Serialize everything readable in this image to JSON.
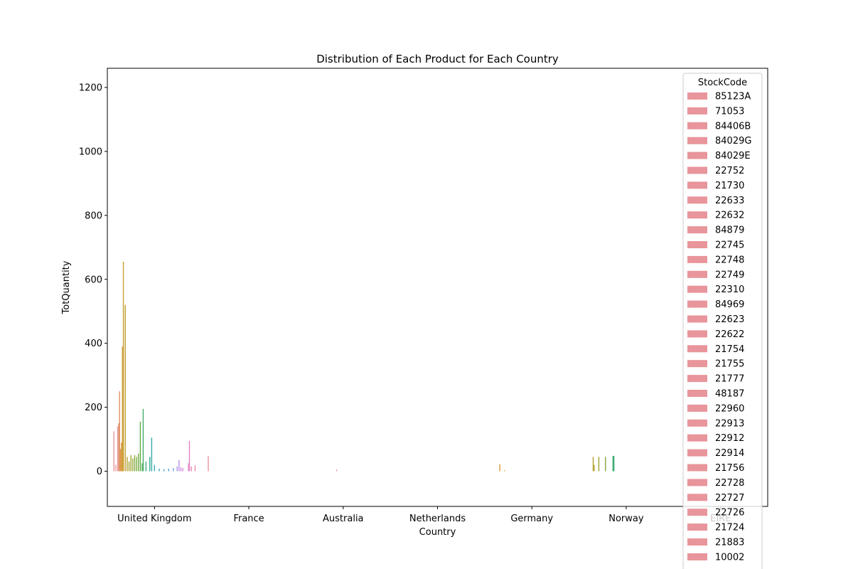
{
  "chart_data": {
    "type": "bar",
    "title": "Distribution of Each Product for Each Country",
    "xlabel": "Country",
    "ylabel": "TotQuantity",
    "categories": [
      "United Kingdom",
      "France",
      "Australia",
      "Netherlands",
      "Germany",
      "Norway",
      "EIRE"
    ],
    "ylim": [
      -110,
      1260
    ],
    "yticks": [
      0,
      200,
      400,
      600,
      800,
      1000,
      1200
    ],
    "grid": false,
    "legend": {
      "title": "StockCode",
      "placement": "upper-right, overflowing bottom",
      "entries": [
        "85123A",
        "71053",
        "84406B",
        "84029G",
        "84029E",
        "22752",
        "21730",
        "22633",
        "22632",
        "84879",
        "22745",
        "22748",
        "22749",
        "22310",
        "84969",
        "22623",
        "22622",
        "21754",
        "21755",
        "21777",
        "48187",
        "22960",
        "22913",
        "22912",
        "22914",
        "21756",
        "22728",
        "22727",
        "22726",
        "21724",
        "21883",
        "10002"
      ],
      "swatch_color": "#e8959b"
    },
    "series_note": "hundreds of StockCode hue bars per country; notable values estimated below",
    "bars": [
      {
        "country": "United Kingdom",
        "offset": -0.43,
        "value": 125,
        "color": "#e8959b"
      },
      {
        "country": "United Kingdom",
        "offset": -0.41,
        "value": 20,
        "color": "#e8959b"
      },
      {
        "country": "United Kingdom",
        "offset": -0.39,
        "value": 140,
        "color": "#e8959b"
      },
      {
        "country": "United Kingdom",
        "offset": -0.38,
        "value": 150,
        "color": "#e39a7a"
      },
      {
        "country": "United Kingdom",
        "offset": -0.37,
        "value": 250,
        "color": "#e08e62"
      },
      {
        "country": "United Kingdom",
        "offset": -0.36,
        "value": 70,
        "color": "#dd9a4a"
      },
      {
        "country": "United Kingdom",
        "offset": -0.35,
        "value": 90,
        "color": "#d79b3d"
      },
      {
        "country": "United Kingdom",
        "offset": -0.34,
        "value": 390,
        "color": "#cf9c33"
      },
      {
        "country": "United Kingdom",
        "offset": -0.33,
        "value": 655,
        "color": "#c89d30"
      },
      {
        "country": "United Kingdom",
        "offset": -0.31,
        "value": 520,
        "color": "#c09e30"
      },
      {
        "country": "United Kingdom",
        "offset": -0.29,
        "value": 45,
        "color": "#b6a030"
      },
      {
        "country": "United Kingdom",
        "offset": -0.27,
        "value": 30,
        "color": "#aaa232"
      },
      {
        "country": "United Kingdom",
        "offset": -0.25,
        "value": 50,
        "color": "#9ea434"
      },
      {
        "country": "United Kingdom",
        "offset": -0.23,
        "value": 40,
        "color": "#92a636"
      },
      {
        "country": "United Kingdom",
        "offset": -0.21,
        "value": 50,
        "color": "#86a838"
      },
      {
        "country": "United Kingdom",
        "offset": -0.19,
        "value": 45,
        "color": "#7aaa3a"
      },
      {
        "country": "United Kingdom",
        "offset": -0.17,
        "value": 55,
        "color": "#6eab3c"
      },
      {
        "country": "United Kingdom",
        "offset": -0.15,
        "value": 155,
        "color": "#5dac40"
      },
      {
        "country": "United Kingdom",
        "offset": -0.13,
        "value": 25,
        "color": "#4fad52"
      },
      {
        "country": "United Kingdom",
        "offset": -0.12,
        "value": 195,
        "color": "#45ad6a"
      },
      {
        "country": "United Kingdom",
        "offset": -0.09,
        "value": 30,
        "color": "#3fad80"
      },
      {
        "country": "United Kingdom",
        "offset": -0.05,
        "value": 45,
        "color": "#3aad95"
      },
      {
        "country": "United Kingdom",
        "offset": -0.03,
        "value": 105,
        "color": "#37aca6"
      },
      {
        "country": "United Kingdom",
        "offset": 0.0,
        "value": 20,
        "color": "#36abb4"
      },
      {
        "country": "United Kingdom",
        "offset": 0.05,
        "value": 8,
        "color": "#38a9c2"
      },
      {
        "country": "United Kingdom",
        "offset": 0.1,
        "value": 6,
        "color": "#3ea6cf"
      },
      {
        "country": "United Kingdom",
        "offset": 0.15,
        "value": 8,
        "color": "#4ca2da"
      },
      {
        "country": "United Kingdom",
        "offset": 0.2,
        "value": 10,
        "color": "#7a9ce0"
      },
      {
        "country": "United Kingdom",
        "offset": 0.24,
        "value": 15,
        "color": "#a794e3"
      },
      {
        "country": "United Kingdom",
        "offset": 0.26,
        "value": 35,
        "color": "#bb8ee3"
      },
      {
        "country": "United Kingdom",
        "offset": 0.28,
        "value": 12,
        "color": "#c98ae0"
      },
      {
        "country": "United Kingdom",
        "offset": 0.3,
        "value": 10,
        "color": "#d786d8"
      },
      {
        "country": "United Kingdom",
        "offset": 0.36,
        "value": 25,
        "color": "#df85cc"
      },
      {
        "country": "United Kingdom",
        "offset": 0.37,
        "value": 95,
        "color": "#e385c0"
      },
      {
        "country": "United Kingdom",
        "offset": 0.39,
        "value": 15,
        "color": "#e488b2"
      },
      {
        "country": "United Kingdom",
        "offset": 0.43,
        "value": 18,
        "color": "#e58ca6"
      },
      {
        "country": "France",
        "offset": -0.43,
        "value": 47,
        "color": "#e8959b"
      },
      {
        "country": "Australia",
        "offset": -0.07,
        "value": 5,
        "color": "#e8959b"
      },
      {
        "country": "Germany",
        "offset": -0.34,
        "value": 22,
        "color": "#d79b3d"
      },
      {
        "country": "Germany",
        "offset": -0.29,
        "value": 3,
        "color": "#c89d30"
      },
      {
        "country": "Norway",
        "offset": -0.35,
        "value": 45,
        "color": "#b6a030"
      },
      {
        "country": "Norway",
        "offset": -0.34,
        "value": 20,
        "color": "#b6a030"
      },
      {
        "country": "Norway",
        "offset": -0.29,
        "value": 45,
        "color": "#9ea434"
      },
      {
        "country": "Norway",
        "offset": -0.22,
        "value": 45,
        "color": "#86a838"
      },
      {
        "country": "Norway",
        "offset": -0.14,
        "value": 48,
        "color": "#45ad6a"
      },
      {
        "country": "Norway",
        "offset": -0.13,
        "value": 48,
        "color": "#3fad80"
      }
    ]
  }
}
